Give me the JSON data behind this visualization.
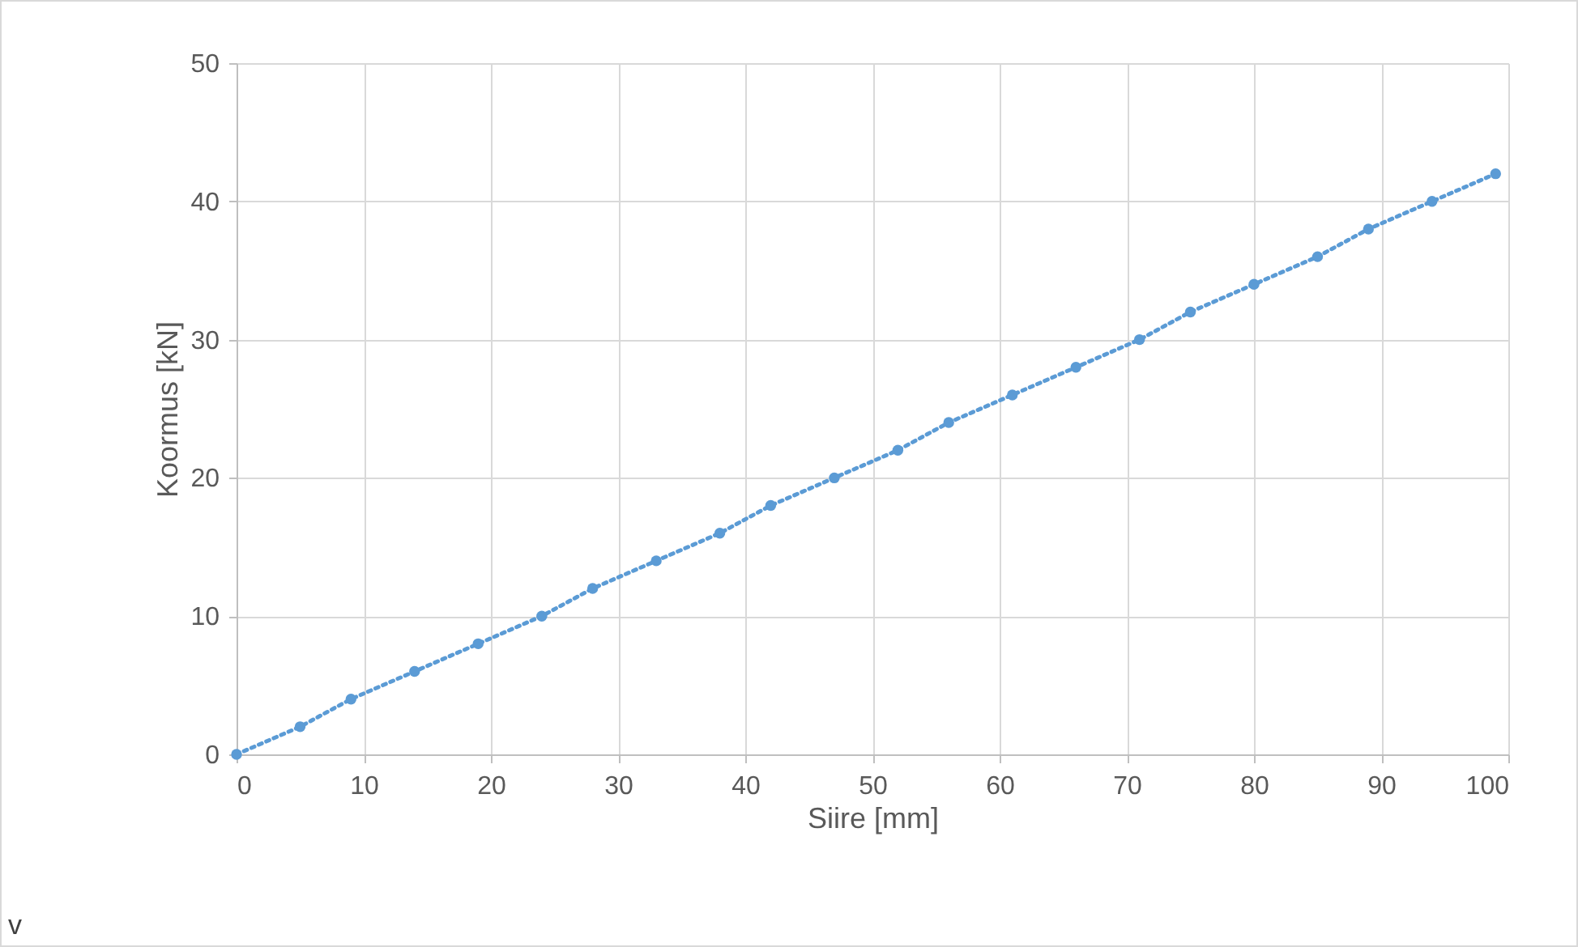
{
  "chart_data": {
    "type": "line",
    "xlabel": "Siire [mm]",
    "ylabel": "Koormus [kN]",
    "x": [
      0,
      5,
      9,
      14,
      19,
      24,
      28,
      33,
      38,
      42,
      47,
      52,
      56,
      61,
      66,
      71,
      75,
      80,
      85,
      89,
      94,
      99
    ],
    "series": [
      {
        "color": "#5b9bd5",
        "values": [
          0,
          2,
          4,
          6,
          8,
          10,
          12,
          14,
          16,
          18,
          20,
          22,
          24,
          26,
          28,
          30,
          32,
          34,
          36,
          38,
          40,
          42
        ]
      }
    ],
    "xlim": [
      0,
      100
    ],
    "xticks": [
      0,
      10,
      20,
      30,
      40,
      50,
      60,
      70,
      80,
      90,
      100
    ],
    "ylim": [
      0,
      50
    ],
    "yticks": [
      0,
      10,
      20,
      30,
      40,
      50
    ],
    "grid": true,
    "marker": "circle",
    "line_style": "dotted",
    "annotations": [
      "v"
    ]
  }
}
